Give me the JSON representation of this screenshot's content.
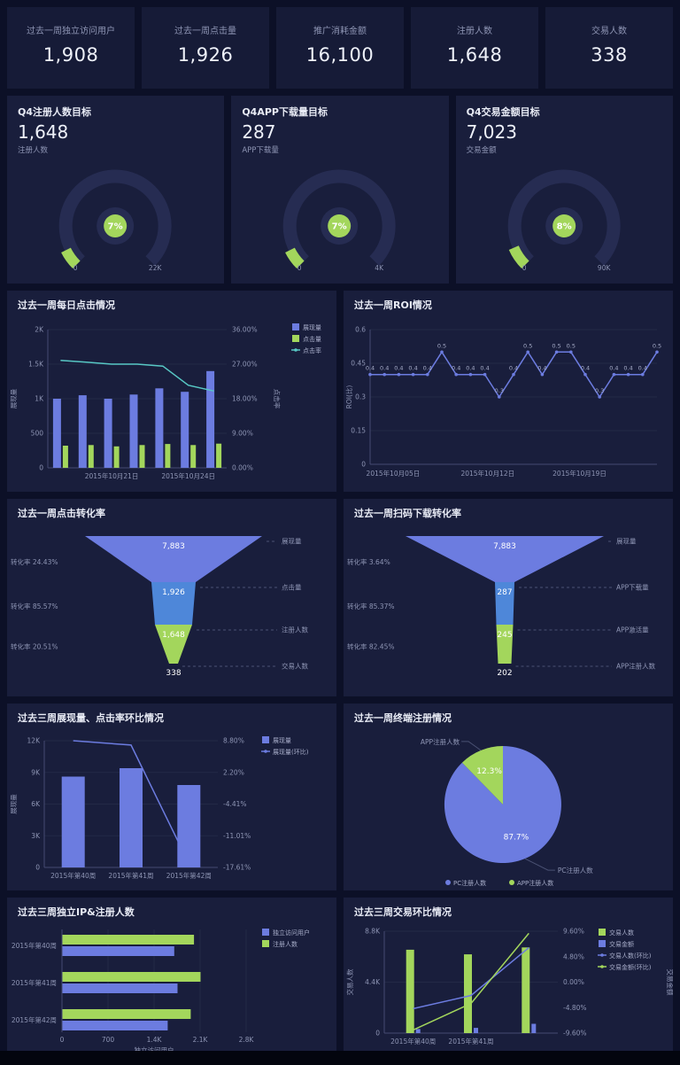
{
  "colors": {
    "purple": "#6c7ce0",
    "green": "#a3d65c",
    "blue": "#4e87d9",
    "teal": "#58c8c5",
    "panel": "#191e3c",
    "page": "#0c1027",
    "track": "#262c52"
  },
  "kpis": [
    {
      "label": "过去一周独立访问用户",
      "value": "1,908"
    },
    {
      "label": "过去一周点击量",
      "value": "1,926"
    },
    {
      "label": "推广消耗金额",
      "value": "16,100"
    },
    {
      "label": "注册人数",
      "value": "1,648"
    },
    {
      "label": "交易人数",
      "value": "338"
    }
  ],
  "gauges": [
    {
      "title": "Q4注册人数目标",
      "value": "1,648",
      "sublabel": "注册人数",
      "percent": 7,
      "min": "0",
      "max": "22K"
    },
    {
      "title": "Q4APP下载量目标",
      "value": "287",
      "sublabel": "APP下载量",
      "percent": 7,
      "min": "0",
      "max": "4K"
    },
    {
      "title": "Q4交易金额目标",
      "value": "7,023",
      "sublabel": "交易金额",
      "percent": 8,
      "min": "0",
      "max": "90K"
    }
  ],
  "chart_data": [
    {
      "id": "daily_clicks",
      "type": "bar",
      "title": "过去一周每日点击情况",
      "x_ticks": [
        "2015年10月21日",
        "2015年10月24日"
      ],
      "y_left": {
        "label": "展现量",
        "max": 2000,
        "ticks": [
          "0",
          "500",
          "1K",
          "1.5K",
          "2K"
        ]
      },
      "y_right": {
        "label": "点击率",
        "max": 36,
        "min": 0,
        "ticks": [
          "0.00%",
          "9.00%",
          "18.00%",
          "27.00%",
          "36.00%"
        ]
      },
      "series": [
        {
          "name": "展现量",
          "kind": "bar",
          "color": "#6c7ce0",
          "values": [
            1000,
            1050,
            1000,
            1060,
            1150,
            1100,
            1400
          ]
        },
        {
          "name": "点击量",
          "kind": "bar",
          "color": "#a3d65c",
          "values": [
            320,
            330,
            310,
            330,
            345,
            330,
            350
          ]
        },
        {
          "name": "点击率",
          "kind": "line",
          "color": "#58c8c5",
          "values": [
            28,
            27.5,
            27,
            27,
            26.5,
            21.5,
            20
          ]
        }
      ]
    },
    {
      "id": "roi",
      "type": "line",
      "title": "过去一周ROI情况",
      "x_ticks": [
        "2015年10月05日",
        "2015年10月12日",
        "2015年10月19日"
      ],
      "y": {
        "label": "ROI(比)",
        "max": 0.6,
        "ticks": [
          "0",
          "0.15",
          "0.3",
          "0.45",
          "0.6"
        ]
      },
      "series": [
        {
          "name": "ROI",
          "color": "#6c7ce0",
          "values": [
            0.4,
            0.4,
            0.4,
            0.4,
            0.4,
            0.5,
            0.4,
            0.4,
            0.4,
            0.3,
            0.4,
            0.5,
            0.4,
            0.5,
            0.5,
            0.4,
            0.3,
            0.4,
            0.4,
            0.4,
            0.5
          ]
        }
      ]
    },
    {
      "id": "funnel_click",
      "type": "funnel",
      "title": "过去一周点击转化率",
      "stages": [
        {
          "label": "展现量",
          "value": "7,883",
          "color": "#6c7ce0"
        },
        {
          "label": "点击量",
          "value": "1,926",
          "color": "#4e87d9"
        },
        {
          "label": "注册人数",
          "value": "1,648",
          "color": "#a3d65c"
        },
        {
          "label": "交易人数",
          "value": "338",
          "color": ""
        }
      ],
      "conversions": [
        "转化率 24.43%",
        "转化率 85.57%",
        "转化率 20.51%"
      ]
    },
    {
      "id": "funnel_scan",
      "type": "funnel",
      "title": "过去一周扫码下载转化率",
      "stages": [
        {
          "label": "展现量",
          "value": "7,883",
          "color": "#6c7ce0"
        },
        {
          "label": "APP下载量",
          "value": "287",
          "color": "#4e87d9"
        },
        {
          "label": "APP激活量",
          "value": "245",
          "color": "#a3d65c"
        },
        {
          "label": "APP注册人数",
          "value": "202",
          "color": ""
        }
      ],
      "conversions": [
        "转化率 3.64%",
        "转化率 85.37%",
        "转化率 82.45%"
      ]
    },
    {
      "id": "weekly_impressions",
      "type": "bar",
      "title": "过去三周展现量、点击率环比情况",
      "categories": [
        "2015年第40周",
        "2015年第41周",
        "2015年第42周"
      ],
      "x_ticks": [
        "2015年第40周",
        "2015年第41周",
        "2015年第42周"
      ],
      "y_left": {
        "label": "展现量",
        "max": 12000,
        "ticks": [
          "0",
          "3K",
          "6K",
          "9K",
          "12K"
        ]
      },
      "y_right": {
        "max": 8.8,
        "min": -17.61,
        "ticks": [
          "-17.61%",
          "-11.01%",
          "-4.41%",
          "2.20%",
          "8.80%"
        ]
      },
      "series": [
        {
          "name": "展现量",
          "kind": "bar",
          "color": "#6c7ce0",
          "values": [
            8600,
            9400,
            7800
          ]
        },
        {
          "name": "展现量(环比)",
          "kind": "line",
          "color": "#6c7ce0",
          "values": [
            8.8,
            7.9,
            -16.8
          ]
        }
      ]
    },
    {
      "id": "terminal_pie",
      "type": "pie",
      "title": "过去一周终端注册情况",
      "slices": [
        {
          "name": "PC注册人数",
          "percent": 87.7,
          "color": "#6c7ce0"
        },
        {
          "name": "APP注册人数",
          "percent": 12.3,
          "color": "#a3d65c"
        }
      ]
    },
    {
      "id": "ip_reg",
      "type": "hbar",
      "title": "过去三周独立IP&注册人数",
      "categories": [
        "2015年第40周",
        "2015年第41周",
        "2015年第42周"
      ],
      "x_ticks": [
        "0",
        "700",
        "1.4K",
        "2.1K",
        "2.8K"
      ],
      "x_max": 2800,
      "x_label": "独立访问用户",
      "series": [
        {
          "name": "独立访问用户",
          "color": "#6c7ce0",
          "values": [
            1700,
            1750,
            1600
          ]
        },
        {
          "name": "注册人数",
          "color": "#a3d65c",
          "values": [
            2000,
            2100,
            1950
          ]
        }
      ]
    },
    {
      "id": "weekly_trade",
      "type": "bar",
      "title": "过去三周交易环比情况",
      "categories": [
        "2015年第40周",
        "2015年第41周",
        "2015年第42周"
      ],
      "x_ticks": [
        "2015年第40周",
        "2015年第41周"
      ],
      "y_left": {
        "label": "交易人数",
        "max": 8800,
        "ticks": [
          "0",
          "4.4K",
          "8.8K"
        ]
      },
      "y_right": {
        "label": "交易金额",
        "max": 9.6,
        "min": -9.6,
        "ticks": [
          "-9.60%",
          "-4.80%",
          "0.00%",
          "4.80%",
          "9.60%"
        ]
      },
      "series": [
        {
          "name": "交易人数",
          "kind": "bar",
          "color": "#a3d65c",
          "values": [
            7200,
            6800,
            7400
          ]
        },
        {
          "name": "交易金额",
          "kind": "bar",
          "color": "#6c7ce0",
          "values": [
            350,
            450,
            800
          ]
        },
        {
          "name": "交易人数(环比)",
          "kind": "line",
          "color": "#6c7ce0",
          "values": [
            -5,
            -2.5,
            6.5
          ]
        },
        {
          "name": "交易金额(环比)",
          "kind": "line",
          "color": "#a3d65c",
          "values": [
            -9,
            -4,
            9.2
          ]
        }
      ]
    }
  ]
}
